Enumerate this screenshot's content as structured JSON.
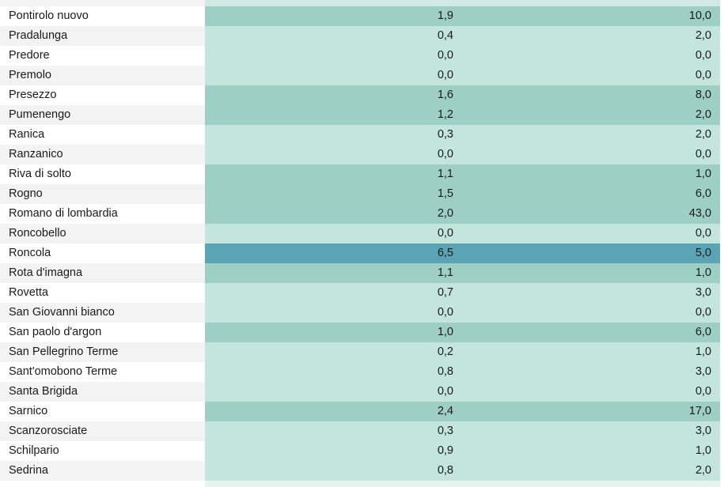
{
  "colors": {
    "name_even": "#ffffff",
    "name_odd": "#f3f3f3",
    "val_light": "#c3e5dc",
    "val_mid": "#9dcfc7",
    "val_dark": "#5aa4b5",
    "cutoff_light": "#e6f3ef",
    "cutoff_mid": "#d2e9e3"
  },
  "rows": [
    {
      "name": "",
      "v1": "",
      "v2": "",
      "shade": "mid",
      "cutoff": true
    },
    {
      "name": "Pontirolo nuovo",
      "v1": "1,9",
      "v2": "10,0",
      "shade": "mid"
    },
    {
      "name": "Pradalunga",
      "v1": "0,4",
      "v2": "2,0",
      "shade": "light"
    },
    {
      "name": "Predore",
      "v1": "0,0",
      "v2": "0,0",
      "shade": "light"
    },
    {
      "name": "Premolo",
      "v1": "0,0",
      "v2": "0,0",
      "shade": "light"
    },
    {
      "name": "Presezzo",
      "v1": "1,6",
      "v2": "8,0",
      "shade": "mid"
    },
    {
      "name": "Pumenengo",
      "v1": "1,2",
      "v2": "2,0",
      "shade": "mid"
    },
    {
      "name": "Ranica",
      "v1": "0,3",
      "v2": "2,0",
      "shade": "light"
    },
    {
      "name": "Ranzanico",
      "v1": "0,0",
      "v2": "0,0",
      "shade": "light"
    },
    {
      "name": "Riva di solto",
      "v1": "1,1",
      "v2": "1,0",
      "shade": "mid"
    },
    {
      "name": "Rogno",
      "v1": "1,5",
      "v2": "6,0",
      "shade": "mid"
    },
    {
      "name": "Romano di lombardia",
      "v1": "2,0",
      "v2": "43,0",
      "shade": "mid"
    },
    {
      "name": "Roncobello",
      "v1": "0,0",
      "v2": "0,0",
      "shade": "light"
    },
    {
      "name": "Roncola",
      "v1": "6,5",
      "v2": "5,0",
      "shade": "dark"
    },
    {
      "name": "Rota d'imagna",
      "v1": "1,1",
      "v2": "1,0",
      "shade": "mid"
    },
    {
      "name": "Rovetta",
      "v1": "0,7",
      "v2": "3,0",
      "shade": "light"
    },
    {
      "name": "San Giovanni bianco",
      "v1": "0,0",
      "v2": "0,0",
      "shade": "light"
    },
    {
      "name": "San paolo d'argon",
      "v1": "1,0",
      "v2": "6,0",
      "shade": "mid"
    },
    {
      "name": "San Pellegrino Terme",
      "v1": "0,2",
      "v2": "1,0",
      "shade": "light"
    },
    {
      "name": "Sant'omobono Terme",
      "v1": "0,8",
      "v2": "3,0",
      "shade": "light"
    },
    {
      "name": "Santa Brigida",
      "v1": "0,0",
      "v2": "0,0",
      "shade": "light"
    },
    {
      "name": "Sarnico",
      "v1": "2,4",
      "v2": "17,0",
      "shade": "mid"
    },
    {
      "name": "Scanzorosciate",
      "v1": "0,3",
      "v2": "3,0",
      "shade": "light"
    },
    {
      "name": "Schilpario",
      "v1": "0,9",
      "v2": "1,0",
      "shade": "light"
    },
    {
      "name": "Sedrina",
      "v1": "0,8",
      "v2": "2,0",
      "shade": "light"
    },
    {
      "name": "",
      "v1": "",
      "v2": "",
      "shade": "light",
      "cutoff": true
    }
  ]
}
